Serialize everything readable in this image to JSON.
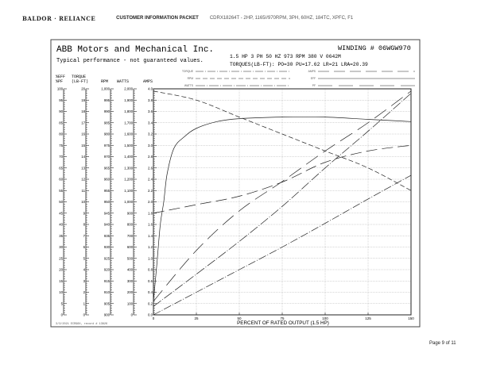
{
  "header": {
    "logo_text": "BALDOR · RELIANCE",
    "packet_title": "CUSTOMER INFORMATION PACKET",
    "spec_line": "CDRX18264T - 2HP, 1165//970RPM, 3PH, 60HZ, 184TC, XPFC, F1"
  },
  "footer": {
    "page_label": "Page 9 of 11"
  },
  "chart_data": {
    "type": "line",
    "company": "ABB Motors and Mechanical Inc.",
    "winding": "WINDING # 06WGW970",
    "subtitle": "Typical performance - not guaranteed values.",
    "rating_line": "1.5 HP   3 PH   50 HZ   973 RPM   380 V   0642M",
    "torques_line": "TORQUES(LB-FT):  PO=30   PU=17.62   LR=21   LRA=20.39",
    "footnote": "3/3/2021 ECR98X, record # 13826",
    "xlabel": "PERCENT OF RATED OUTPUT (1.5 HP)",
    "xlim": [
      0,
      150
    ],
    "xticks": [
      "0",
      "25",
      "50",
      "75",
      "100",
      "125",
      "150"
    ],
    "grid": true,
    "legend_placement": "top",
    "axes": [
      {
        "label1": "%EFF",
        "label2": "%PF",
        "min": 0,
        "max": 100,
        "step": 5,
        "ticks": [
          "100",
          "95",
          "90",
          "85",
          "80",
          "75",
          "70",
          "65",
          "60",
          "55",
          "50",
          "45",
          "40",
          "35",
          "30",
          "25",
          "20",
          "15",
          "10",
          "5",
          "0"
        ]
      },
      {
        "label1": "TORQUE",
        "label2": "(LB-FT)",
        "min": 0,
        "max": 20,
        "step": 1,
        "ticks": [
          "20",
          "19",
          "18",
          "17",
          "16",
          "15",
          "14",
          "13",
          "12",
          "11",
          "10",
          "9",
          "8",
          "7",
          "6",
          "5",
          "4",
          "3",
          "2",
          "1",
          "0"
        ]
      },
      {
        "label1": "",
        "label2": "RPM",
        "min": 900,
        "max": 1000,
        "step": 5,
        "ticks": [
          "1,000",
          "995",
          "990",
          "985",
          "980",
          "975",
          "970",
          "965",
          "960",
          "955",
          "950",
          "945",
          "940",
          "935",
          "930",
          "925",
          "920",
          "915",
          "910",
          "905",
          "900"
        ]
      },
      {
        "label1": "",
        "label2": "WATTS",
        "min": 0,
        "max": 2000,
        "step": 100,
        "ticks": [
          "2,000",
          "1,900",
          "1,800",
          "1,700",
          "1,600",
          "1,500",
          "1,400",
          "1,300",
          "1,200",
          "1,100",
          "1,000",
          "900",
          "800",
          "700",
          "600",
          "500",
          "400",
          "300",
          "200",
          "100",
          "0"
        ]
      },
      {
        "label1": "",
        "label2": "AMPS",
        "min": 0,
        "max": 4,
        "step": 0.2,
        "ticks": [
          "4.0",
          "3.8",
          "3.6",
          "3.4",
          "3.2",
          "3.0",
          "2.8",
          "2.6",
          "2.4",
          "2.2",
          "2.0",
          "1.8",
          "1.6",
          "1.4",
          "1.2",
          "1.0",
          "0.8",
          "0.6",
          "0.4",
          "0.2",
          "0.0"
        ]
      }
    ],
    "series": [
      {
        "name": "TORQUE",
        "axis": 1,
        "dash": "10 2 1 2",
        "x": [
          0,
          25,
          50,
          75,
          100,
          125,
          150
        ],
        "y": [
          0,
          2,
          4,
          6,
          8.1,
          10.25,
          12.35
        ]
      },
      {
        "name": "RPM",
        "axis": 2,
        "dash": "6 3",
        "x": [
          0,
          25,
          50,
          75,
          100,
          125,
          150
        ],
        "y": [
          999,
          995,
          987.5,
          980,
          972.5,
          965,
          955
        ]
      },
      {
        "name": "WATTS",
        "axis": 3,
        "dash": "12 2 1 2",
        "x": [
          0,
          25,
          50,
          75,
          100,
          125,
          150
        ],
        "y": [
          75,
          360,
          650,
          960,
          1300,
          1625,
          1960
        ]
      },
      {
        "name": "AMPS",
        "axis": 4,
        "dash": "14 6",
        "x": [
          0,
          25,
          50,
          75,
          100,
          125,
          150
        ],
        "y": [
          1.8,
          1.95,
          2.1,
          2.35,
          2.7,
          2.9,
          3.0
        ]
      },
      {
        "name": "EFF",
        "axis": 0,
        "dash": "",
        "x": [
          0,
          2,
          4,
          6,
          8,
          12,
          18,
          25,
          37,
          50,
          75,
          100,
          125,
          150
        ],
        "y": [
          6,
          22.5,
          40,
          50,
          62.5,
          73.8,
          78.8,
          82.5,
          85.5,
          86.8,
          87.5,
          87.5,
          86.5,
          85.5
        ]
      },
      {
        "name": "PF",
        "axis": 0,
        "dash": "18 8",
        "x": [
          0,
          25,
          50,
          75,
          100,
          125,
          150
        ],
        "y": [
          6,
          28.5,
          46,
          59,
          72.5,
          85,
          99
        ]
      }
    ]
  }
}
